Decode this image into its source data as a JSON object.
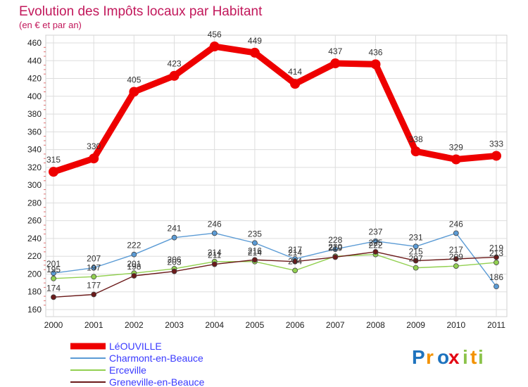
{
  "chart_data": {
    "type": "line",
    "title": "Evolution des Impôts locaux par Habitant",
    "subtitle": "(en € et par an)",
    "xlabel": "",
    "ylabel": "",
    "categories": [
      "2000",
      "2001",
      "2002",
      "2003",
      "2004",
      "2005",
      "2006",
      "2007",
      "2008",
      "2009",
      "2010",
      "2011"
    ],
    "ylim": [
      160,
      460
    ],
    "yticks": [
      160,
      180,
      200,
      220,
      240,
      260,
      280,
      300,
      320,
      340,
      360,
      380,
      400,
      420,
      440,
      460
    ],
    "grid": true,
    "legend_position": "bottom-left",
    "series": [
      {
        "name": "LéOUVILLE",
        "color": "#ee0000",
        "values": [
          315,
          330,
          405,
          423,
          456,
          449,
          414,
          437,
          436,
          338,
          329,
          333
        ]
      },
      {
        "name": "Charmont-en-Beauce",
        "color": "#5b9bd5",
        "values": [
          201,
          207,
          222,
          241,
          246,
          235,
          217,
          228,
          237,
          231,
          246,
          186
        ]
      },
      {
        "name": "Erceville",
        "color": "#92d050",
        "values": [
          195,
          197,
          201,
          206,
          214,
          214,
          204,
          220,
          222,
          207,
          209,
          213
        ]
      },
      {
        "name": "Greneville-en-Beauce",
        "color": "#6b1a1a",
        "values": [
          174,
          177,
          198,
          203,
          211,
          216,
          214,
          219,
          225,
          215,
          217,
          219
        ]
      }
    ]
  },
  "logo": {
    "text": "Proxiti",
    "letters": [
      "P",
      "r",
      "o",
      "x",
      "i",
      "t",
      "i"
    ],
    "colors": [
      "#1e73be",
      "#f39200",
      "#1e73be",
      "#e30613",
      "#8bc34a",
      "#f39200",
      "#8bc34a"
    ]
  }
}
